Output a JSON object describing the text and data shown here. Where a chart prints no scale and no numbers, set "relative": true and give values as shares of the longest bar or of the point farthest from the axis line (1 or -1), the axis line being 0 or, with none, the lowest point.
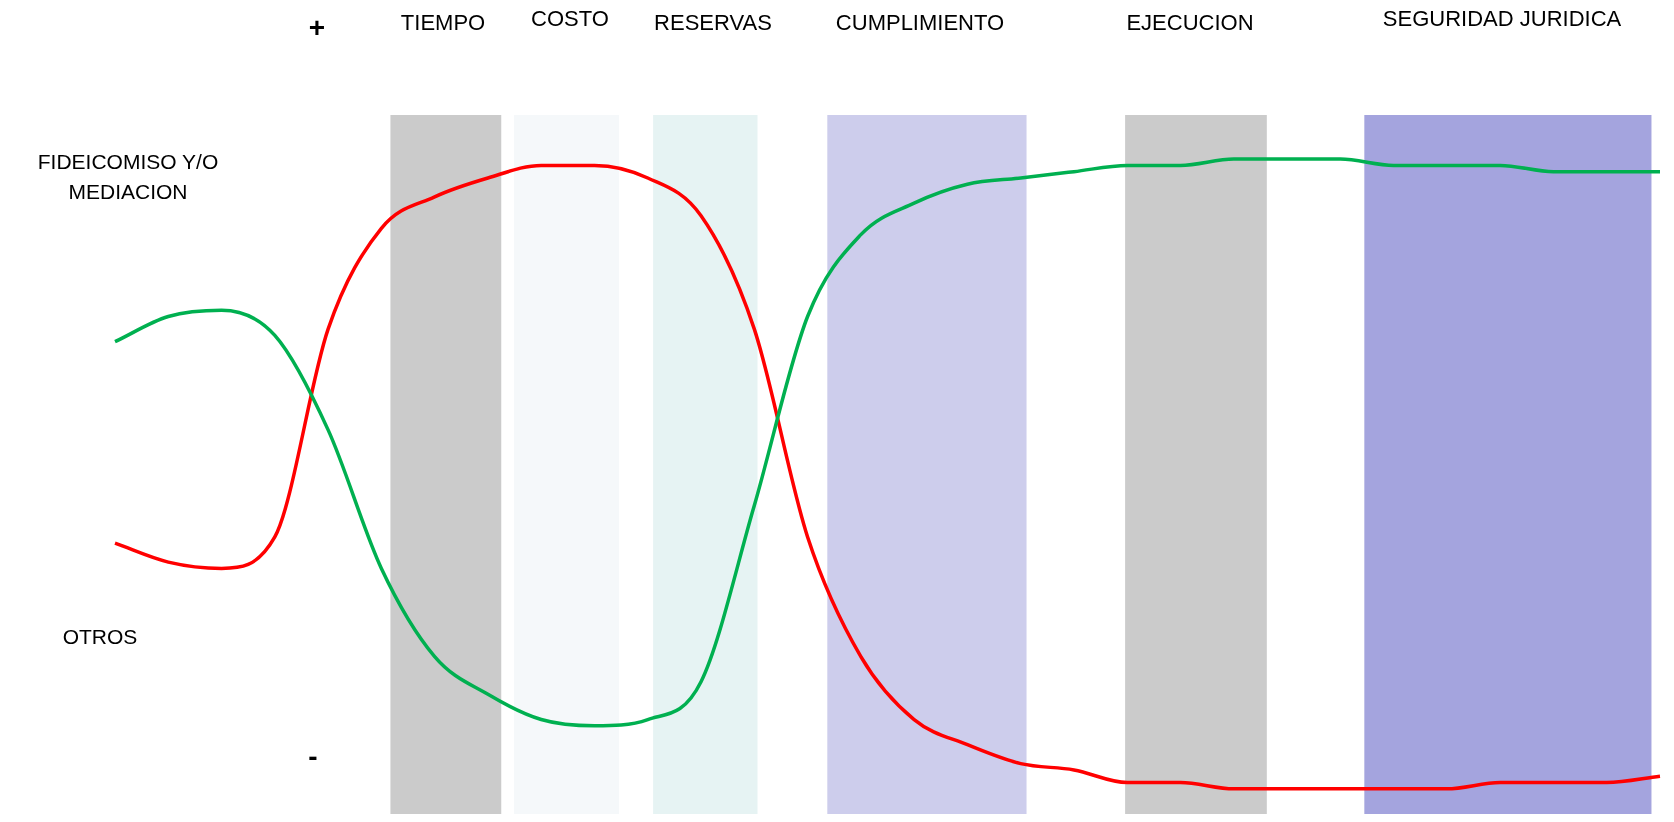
{
  "chart_data": {
    "type": "line",
    "relative": true,
    "tick_labels": false,
    "categories": [
      null,
      null,
      null,
      null,
      null,
      null,
      null,
      null,
      null,
      null,
      null,
      null,
      null,
      null,
      null,
      null,
      null,
      null,
      null,
      null,
      null,
      null,
      null,
      null,
      null,
      null,
      null,
      null,
      null,
      null
    ],
    "series": [
      {
        "color": "#00b050",
        "values": [
          0.71,
          0.75,
          0.76,
          0.72,
          0.57,
          0.35,
          0.21,
          0.15,
          0.11,
          0.1,
          0.11,
          0.17,
          0.45,
          0.75,
          0.88,
          0.93,
          0.96,
          0.97,
          0.98,
          0.99,
          0.99,
          1.0,
          1.0,
          1.0,
          0.99,
          0.99,
          0.99,
          0.98,
          0.98,
          0.98
        ]
      },
      {
        "color": "#ff0000",
        "values": [
          0.39,
          0.36,
          0.35,
          0.4,
          0.73,
          0.89,
          0.94,
          0.97,
          0.99,
          0.99,
          0.97,
          0.91,
          0.73,
          0.4,
          0.21,
          0.11,
          0.07,
          0.04,
          0.03,
          0.01,
          0.01,
          0,
          0,
          0,
          0,
          0,
          0.01,
          0.01,
          0.01,
          0.02
        ]
      }
    ],
    "annotations": [
      "+",
      "-",
      "FIDEICOMISO Y/O MEDIACION",
      "OTROS",
      "TIEMPO",
      "COSTO",
      "RESERVAS",
      "CUMPLIMIENTO",
      "EJECUCION",
      "SEGURIDAD JURIDICA"
    ]
  }
}
